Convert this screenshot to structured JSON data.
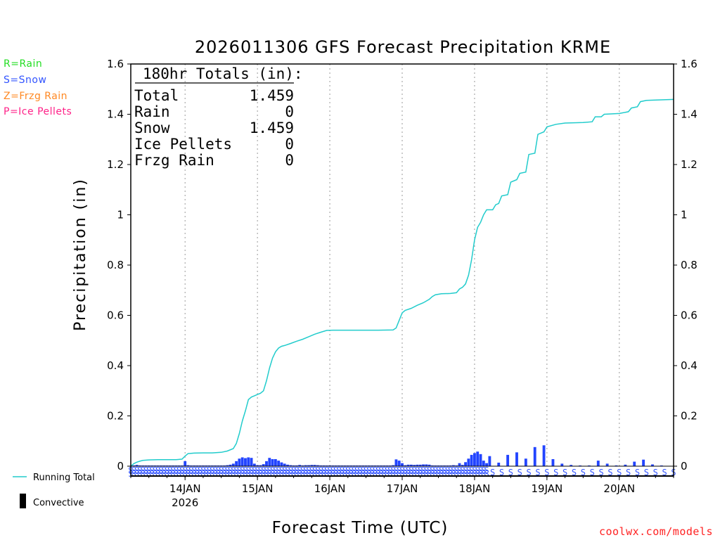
{
  "chart_data": {
    "type": "bar+line",
    "title": "2026011306 GFS Forecast Precipitation KRME",
    "xlabel": "Forecast Time (UTC)",
    "ylabel": "Precipitation (in)",
    "ylim": [
      0,
      1.6
    ],
    "y_ticks": [
      0,
      0.2,
      0.4,
      0.6,
      0.8,
      1,
      1.2,
      1.4,
      1.6
    ],
    "y_tick_labels": [
      "0",
      "0.2",
      "0.4",
      "0.6",
      "0.8",
      "1",
      "1.2",
      "1.4",
      "1.6"
    ],
    "x_start_hour": 6,
    "x_end_hour": 186,
    "x_ticks": [
      {
        "hour": 24,
        "label": "14JAN",
        "sublabel": "2026"
      },
      {
        "hour": 48,
        "label": "15JAN",
        "sublabel": ""
      },
      {
        "hour": 72,
        "label": "16JAN",
        "sublabel": ""
      },
      {
        "hour": 96,
        "label": "17JAN",
        "sublabel": ""
      },
      {
        "hour": 120,
        "label": "18JAN",
        "sublabel": ""
      },
      {
        "hour": 144,
        "label": "19JAN",
        "sublabel": ""
      },
      {
        "hour": 168,
        "label": "20JAN",
        "sublabel": ""
      }
    ],
    "ptype_legend": [
      {
        "text": "R=Rain",
        "color": "#22dd22"
      },
      {
        "text": "S=Snow",
        "color": "#3355ff"
      },
      {
        "text": "Z=Frzg Rain",
        "color": "#ff8822"
      },
      {
        "text": "P=Ice Pellets",
        "color": "#ff2288"
      }
    ],
    "totals_box": {
      "header": "180hr Totals (in):",
      "rows": [
        {
          "label": "Total",
          "value": "1.459"
        },
        {
          "label": "Rain",
          "value": "0"
        },
        {
          "label": "Snow",
          "value": "1.459"
        },
        {
          "label": "Ice Pellets",
          "value": "0"
        },
        {
          "label": "Frzg Rain",
          "value": "0"
        }
      ]
    },
    "series_legend": {
      "running_total": {
        "label": "Running Total",
        "color": "#22cccc"
      },
      "convective": {
        "label": "Convective",
        "color": "#000000"
      }
    },
    "bar_color": "#2244ff",
    "snow_marker_color": "#3355ff",
    "snow_marker": "S",
    "running_total": [
      [
        6,
        0.0
      ],
      [
        7,
        0.01
      ],
      [
        8,
        0.016
      ],
      [
        9,
        0.02
      ],
      [
        10,
        0.023
      ],
      [
        12,
        0.025
      ],
      [
        15,
        0.026
      ],
      [
        18,
        0.026
      ],
      [
        21,
        0.026
      ],
      [
        23,
        0.028
      ],
      [
        24,
        0.04
      ],
      [
        25,
        0.05
      ],
      [
        27,
        0.052
      ],
      [
        30,
        0.053
      ],
      [
        33,
        0.053
      ],
      [
        36,
        0.055
      ],
      [
        38,
        0.06
      ],
      [
        40,
        0.07
      ],
      [
        41,
        0.09
      ],
      [
        42,
        0.13
      ],
      [
        43,
        0.18
      ],
      [
        44,
        0.22
      ],
      [
        45,
        0.265
      ],
      [
        46,
        0.275
      ],
      [
        47,
        0.28
      ],
      [
        48,
        0.285
      ],
      [
        49,
        0.29
      ],
      [
        50,
        0.3
      ],
      [
        51,
        0.34
      ],
      [
        52,
        0.39
      ],
      [
        53,
        0.43
      ],
      [
        54,
        0.455
      ],
      [
        55,
        0.47
      ],
      [
        56,
        0.477
      ],
      [
        57,
        0.48
      ],
      [
        59,
        0.488
      ],
      [
        61,
        0.497
      ],
      [
        63,
        0.505
      ],
      [
        65,
        0.515
      ],
      [
        67,
        0.525
      ],
      [
        69,
        0.533
      ],
      [
        71,
        0.54
      ],
      [
        73,
        0.541
      ],
      [
        80,
        0.541
      ],
      [
        88,
        0.541
      ],
      [
        93,
        0.542
      ],
      [
        94,
        0.55
      ],
      [
        95,
        0.58
      ],
      [
        96,
        0.61
      ],
      [
        97,
        0.62
      ],
      [
        99,
        0.628
      ],
      [
        101,
        0.64
      ],
      [
        103,
        0.65
      ],
      [
        105,
        0.664
      ],
      [
        106,
        0.675
      ],
      [
        107,
        0.682
      ],
      [
        109,
        0.686
      ],
      [
        112,
        0.687
      ],
      [
        114,
        0.69
      ],
      [
        115,
        0.705
      ],
      [
        116,
        0.712
      ],
      [
        117,
        0.725
      ],
      [
        118,
        0.76
      ],
      [
        119,
        0.82
      ],
      [
        120,
        0.9
      ],
      [
        121,
        0.95
      ],
      [
        122,
        0.97
      ],
      [
        123,
        1.0
      ],
      [
        124,
        1.02
      ],
      [
        126,
        1.02
      ],
      [
        127,
        1.04
      ],
      [
        128,
        1.045
      ],
      [
        129,
        1.075
      ],
      [
        131,
        1.08
      ],
      [
        132,
        1.13
      ],
      [
        134,
        1.14
      ],
      [
        135,
        1.165
      ],
      [
        137,
        1.17
      ],
      [
        138,
        1.24
      ],
      [
        140,
        1.245
      ],
      [
        141,
        1.32
      ],
      [
        143,
        1.33
      ],
      [
        144,
        1.35
      ],
      [
        147,
        1.36
      ],
      [
        150,
        1.365
      ],
      [
        156,
        1.367
      ],
      [
        159,
        1.37
      ],
      [
        160,
        1.39
      ],
      [
        162,
        1.39
      ],
      [
        163,
        1.4
      ],
      [
        168,
        1.403
      ],
      [
        171,
        1.41
      ],
      [
        172,
        1.425
      ],
      [
        174,
        1.43
      ],
      [
        175,
        1.45
      ],
      [
        177,
        1.455
      ],
      [
        186,
        1.459
      ]
    ],
    "bars": [
      [
        7,
        0.003
      ],
      [
        8,
        0.005
      ],
      [
        9,
        0.003
      ],
      [
        10,
        0.002
      ],
      [
        11,
        0.001
      ],
      [
        12,
        0.001
      ],
      [
        13,
        0.001
      ],
      [
        14,
        0.001
      ],
      [
        15,
        0.001
      ],
      [
        16,
        0.001
      ],
      [
        17,
        0.001
      ],
      [
        18,
        0.001
      ],
      [
        19,
        0.002
      ],
      [
        20,
        0.001
      ],
      [
        21,
        0.001
      ],
      [
        22,
        0.001
      ],
      [
        23,
        0.002
      ],
      [
        24,
        0.02
      ],
      [
        25,
        0.004
      ],
      [
        26,
        0.002
      ],
      [
        27,
        0.001
      ],
      [
        28,
        0.001
      ],
      [
        29,
        0.001
      ],
      [
        30,
        0.001
      ],
      [
        31,
        0.001
      ],
      [
        32,
        0.001
      ],
      [
        33,
        0.001
      ],
      [
        34,
        0.001
      ],
      [
        35,
        0.001
      ],
      [
        36,
        0.001
      ],
      [
        37,
        0.002
      ],
      [
        38,
        0.004
      ],
      [
        39,
        0.006
      ],
      [
        40,
        0.01
      ],
      [
        41,
        0.02
      ],
      [
        42,
        0.03
      ],
      [
        43,
        0.035
      ],
      [
        44,
        0.032
      ],
      [
        45,
        0.035
      ],
      [
        46,
        0.033
      ],
      [
        47,
        0.01
      ],
      [
        48,
        0.004
      ],
      [
        49,
        0.004
      ],
      [
        50,
        0.008
      ],
      [
        51,
        0.02
      ],
      [
        52,
        0.033
      ],
      [
        53,
        0.028
      ],
      [
        54,
        0.028
      ],
      [
        55,
        0.022
      ],
      [
        56,
        0.015
      ],
      [
        57,
        0.01
      ],
      [
        58,
        0.006
      ],
      [
        59,
        0.004
      ],
      [
        60,
        0.003
      ],
      [
        61,
        0.003
      ],
      [
        62,
        0.005
      ],
      [
        63,
        0.003
      ],
      [
        64,
        0.004
      ],
      [
        65,
        0.004
      ],
      [
        66,
        0.005
      ],
      [
        67,
        0.005
      ],
      [
        68,
        0.004
      ],
      [
        69,
        0.003
      ],
      [
        70,
        0.003
      ],
      [
        71,
        0.002
      ],
      [
        72,
        0.001
      ],
      [
        73,
        0.001
      ],
      [
        74,
        0.001
      ],
      [
        75,
        0.001
      ],
      [
        76,
        0.001
      ],
      [
        77,
        0.001
      ],
      [
        78,
        0.001
      ],
      [
        79,
        0.001
      ],
      [
        80,
        0.001
      ],
      [
        81,
        0.001
      ],
      [
        82,
        0.001
      ],
      [
        83,
        0.001
      ],
      [
        84,
        0.001
      ],
      [
        85,
        0.001
      ],
      [
        86,
        0.001
      ],
      [
        87,
        0.001
      ],
      [
        88,
        0.001
      ],
      [
        89,
        0.001
      ],
      [
        90,
        0.001
      ],
      [
        91,
        0.001
      ],
      [
        92,
        0.001
      ],
      [
        93,
        0.004
      ],
      [
        94,
        0.027
      ],
      [
        95,
        0.022
      ],
      [
        96,
        0.012
      ],
      [
        97,
        0.004
      ],
      [
        98,
        0.006
      ],
      [
        99,
        0.006
      ],
      [
        100,
        0.005
      ],
      [
        101,
        0.006
      ],
      [
        102,
        0.006
      ],
      [
        103,
        0.007
      ],
      [
        104,
        0.007
      ],
      [
        105,
        0.006
      ],
      [
        106,
        0.003
      ],
      [
        107,
        0.002
      ],
      [
        108,
        0.002
      ],
      [
        109,
        0.002
      ],
      [
        110,
        0.002
      ],
      [
        111,
        0.002
      ],
      [
        112,
        0.003
      ],
      [
        113,
        0.004
      ],
      [
        114,
        0.003
      ],
      [
        115,
        0.012
      ],
      [
        116,
        0.005
      ],
      [
        117,
        0.016
      ],
      [
        118,
        0.03
      ],
      [
        119,
        0.045
      ],
      [
        120,
        0.052
      ],
      [
        121,
        0.058
      ],
      [
        122,
        0.048
      ],
      [
        123,
        0.022
      ],
      [
        124,
        0.012
      ],
      [
        125,
        0.04
      ],
      [
        128,
        0.014
      ],
      [
        131,
        0.045
      ],
      [
        134,
        0.055
      ],
      [
        137,
        0.03
      ],
      [
        140,
        0.076
      ],
      [
        143,
        0.083
      ],
      [
        146,
        0.028
      ],
      [
        149,
        0.01
      ],
      [
        152,
        0.005
      ],
      [
        155,
        0.002
      ],
      [
        158,
        0.002
      ],
      [
        161,
        0.022
      ],
      [
        164,
        0.01
      ],
      [
        167,
        0.003
      ],
      [
        170,
        0.006
      ],
      [
        173,
        0.018
      ],
      [
        176,
        0.026
      ],
      [
        179,
        0.007
      ],
      [
        182,
        0.002
      ]
    ]
  },
  "footer": {
    "series_label": "Running Total",
    "convective_label": "Convective",
    "credit": "coolwx.com/models",
    "credit_color": "#ff2222"
  }
}
